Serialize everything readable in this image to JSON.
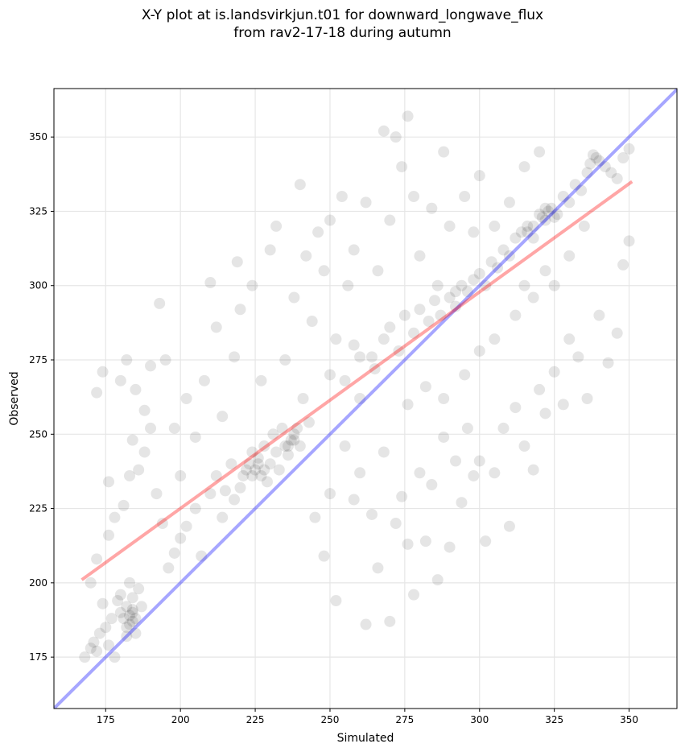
{
  "chart_data": {
    "type": "scatter",
    "title_line1": "X-Y plot at is.landsvirkjun.t01 for downward_longwave_flux",
    "title_line2": "from rav2-17-18 during autumn",
    "xlabel": "Simulated",
    "ylabel": "Observed",
    "xlim": [
      157.7,
      366
    ],
    "ylim": [
      157.7,
      366.3
    ],
    "xticks": [
      175,
      200,
      225,
      250,
      275,
      300,
      325,
      350
    ],
    "yticks": [
      175,
      200,
      225,
      250,
      275,
      300,
      325,
      350
    ],
    "grid": true,
    "colors": {
      "points": "#000000",
      "regression": "#ff0000",
      "identity": "#0000ff"
    },
    "regression_line": {
      "x": [
        167,
        351
      ],
      "y": [
        201,
        335
      ]
    },
    "identity_line": {
      "x": [
        157.7,
        366
      ],
      "y": [
        157.7,
        366
      ]
    },
    "points": [
      [
        168,
        175
      ],
      [
        170,
        178
      ],
      [
        171,
        180
      ],
      [
        172,
        177
      ],
      [
        173,
        183
      ],
      [
        175,
        185
      ],
      [
        176,
        179
      ],
      [
        178,
        175
      ],
      [
        180,
        190
      ],
      [
        181,
        188
      ],
      [
        182,
        192
      ],
      [
        183,
        186
      ],
      [
        184,
        190
      ],
      [
        185,
        188
      ],
      [
        184,
        195
      ],
      [
        186,
        198
      ],
      [
        182,
        182
      ],
      [
        183,
        200
      ],
      [
        180,
        196
      ],
      [
        179,
        194
      ],
      [
        185,
        183
      ],
      [
        187,
        192
      ],
      [
        177,
        188
      ],
      [
        174,
        193
      ],
      [
        170,
        200
      ],
      [
        172,
        208
      ],
      [
        176,
        216
      ],
      [
        178,
        222
      ],
      [
        181,
        226
      ],
      [
        183,
        236
      ],
      [
        184,
        248
      ],
      [
        186,
        238
      ],
      [
        188,
        244
      ],
      [
        190,
        252
      ],
      [
        192,
        230
      ],
      [
        194,
        220
      ],
      [
        196,
        205
      ],
      [
        198,
        210
      ],
      [
        200,
        215
      ],
      [
        202,
        219
      ],
      [
        205,
        225
      ],
      [
        207,
        209
      ],
      [
        210,
        230
      ],
      [
        212,
        236
      ],
      [
        214,
        222
      ],
      [
        215,
        231
      ],
      [
        217,
        240
      ],
      [
        218,
        228
      ],
      [
        220,
        232
      ],
      [
        221,
        236
      ],
      [
        222,
        238
      ],
      [
        223,
        240
      ],
      [
        224,
        244
      ],
      [
        225,
        238
      ],
      [
        226,
        242
      ],
      [
        227,
        236
      ],
      [
        228,
        246
      ],
      [
        229,
        234
      ],
      [
        230,
        240
      ],
      [
        231,
        250
      ],
      [
        232,
        244
      ],
      [
        233,
        238
      ],
      [
        234,
        252
      ],
      [
        235,
        246
      ],
      [
        236,
        243
      ],
      [
        237,
        248
      ],
      [
        238,
        250
      ],
      [
        239,
        252
      ],
      [
        240,
        246
      ],
      [
        241,
        262
      ],
      [
        243,
        254
      ],
      [
        172,
        264
      ],
      [
        174,
        271
      ],
      [
        176,
        234
      ],
      [
        180,
        268
      ],
      [
        182,
        275
      ],
      [
        185,
        265
      ],
      [
        188,
        258
      ],
      [
        190,
        273
      ],
      [
        193,
        294
      ],
      [
        195,
        275
      ],
      [
        198,
        252
      ],
      [
        200,
        236
      ],
      [
        202,
        262
      ],
      [
        205,
        249
      ],
      [
        208,
        268
      ],
      [
        210,
        301
      ],
      [
        212,
        286
      ],
      [
        214,
        256
      ],
      [
        218,
        276
      ],
      [
        219,
        308
      ],
      [
        220,
        292
      ],
      [
        224,
        300
      ],
      [
        227,
        268
      ],
      [
        230,
        312
      ],
      [
        232,
        320
      ],
      [
        235,
        275
      ],
      [
        238,
        296
      ],
      [
        240,
        334
      ],
      [
        242,
        310
      ],
      [
        244,
        288
      ],
      [
        246,
        318
      ],
      [
        248,
        305
      ],
      [
        250,
        322
      ],
      [
        252,
        282
      ],
      [
        254,
        330
      ],
      [
        256,
        300
      ],
      [
        258,
        312
      ],
      [
        260,
        262
      ],
      [
        262,
        328
      ],
      [
        264,
        276
      ],
      [
        266,
        305
      ],
      [
        268,
        352
      ],
      [
        270,
        322
      ],
      [
        272,
        350
      ],
      [
        274,
        340
      ],
      [
        276,
        357
      ],
      [
        278,
        330
      ],
      [
        280,
        310
      ],
      [
        284,
        326
      ],
      [
        286,
        300
      ],
      [
        288,
        345
      ],
      [
        290,
        320
      ],
      [
        292,
        298
      ],
      [
        295,
        330
      ],
      [
        298,
        318
      ],
      [
        300,
        337
      ],
      [
        305,
        320
      ],
      [
        310,
        328
      ],
      [
        315,
        340
      ],
      [
        320,
        345
      ],
      [
        245,
        222
      ],
      [
        248,
        209
      ],
      [
        250,
        230
      ],
      [
        252,
        194
      ],
      [
        255,
        246
      ],
      [
        258,
        228
      ],
      [
        260,
        237
      ],
      [
        262,
        186
      ],
      [
        264,
        223
      ],
      [
        266,
        205
      ],
      [
        268,
        244
      ],
      [
        270,
        187
      ],
      [
        272,
        220
      ],
      [
        274,
        229
      ],
      [
        276,
        213
      ],
      [
        278,
        196
      ],
      [
        280,
        237
      ],
      [
        282,
        214
      ],
      [
        284,
        233
      ],
      [
        286,
        201
      ],
      [
        288,
        249
      ],
      [
        290,
        212
      ],
      [
        292,
        241
      ],
      [
        294,
        227
      ],
      [
        296,
        252
      ],
      [
        298,
        236
      ],
      [
        300,
        241
      ],
      [
        302,
        214
      ],
      [
        305,
        237
      ],
      [
        308,
        252
      ],
      [
        310,
        219
      ],
      [
        312,
        259
      ],
      [
        315,
        246
      ],
      [
        318,
        238
      ],
      [
        320,
        265
      ],
      [
        322,
        257
      ],
      [
        325,
        271
      ],
      [
        328,
        260
      ],
      [
        330,
        282
      ],
      [
        333,
        276
      ],
      [
        336,
        262
      ],
      [
        340,
        290
      ],
      [
        343,
        274
      ],
      [
        346,
        284
      ],
      [
        348,
        307
      ],
      [
        350,
        315
      ],
      [
        250,
        270
      ],
      [
        255,
        268
      ],
      [
        258,
        280
      ],
      [
        260,
        276
      ],
      [
        265,
        272
      ],
      [
        268,
        282
      ],
      [
        270,
        286
      ],
      [
        273,
        278
      ],
      [
        275,
        290
      ],
      [
        278,
        284
      ],
      [
        280,
        292
      ],
      [
        283,
        288
      ],
      [
        285,
        295
      ],
      [
        287,
        290
      ],
      [
        290,
        296
      ],
      [
        292,
        293
      ],
      [
        294,
        300
      ],
      [
        296,
        298
      ],
      [
        298,
        302
      ],
      [
        300,
        304
      ],
      [
        302,
        300
      ],
      [
        304,
        308
      ],
      [
        306,
        306
      ],
      [
        308,
        312
      ],
      [
        310,
        310
      ],
      [
        312,
        316
      ],
      [
        314,
        318
      ],
      [
        316,
        320
      ],
      [
        318,
        316
      ],
      [
        320,
        324
      ],
      [
        322,
        322
      ],
      [
        324,
        326
      ],
      [
        326,
        324
      ],
      [
        328,
        330
      ],
      [
        330,
        328
      ],
      [
        332,
        334
      ],
      [
        334,
        332
      ],
      [
        336,
        338
      ],
      [
        338,
        344
      ],
      [
        340,
        342
      ],
      [
        342,
        340
      ],
      [
        344,
        338
      ],
      [
        346,
        336
      ],
      [
        348,
        343
      ],
      [
        350,
        346
      ],
      [
        325,
        300
      ],
      [
        318,
        296
      ],
      [
        312,
        290
      ],
      [
        305,
        282
      ],
      [
        300,
        278
      ],
      [
        295,
        270
      ],
      [
        288,
        262
      ],
      [
        282,
        266
      ],
      [
        276,
        260
      ],
      [
        335,
        320
      ],
      [
        330,
        310
      ],
      [
        322,
        305
      ],
      [
        315,
        300
      ],
      [
        183,
        189
      ],
      [
        184,
        187
      ],
      [
        182,
        185
      ],
      [
        184,
        191
      ],
      [
        321,
        323
      ],
      [
        323,
        325
      ],
      [
        325,
        323
      ],
      [
        322,
        326
      ],
      [
        316,
        318
      ],
      [
        318,
        320
      ],
      [
        339,
        343
      ],
      [
        337,
        341
      ],
      [
        226,
        240
      ],
      [
        224,
        236
      ],
      [
        228,
        238
      ],
      [
        236,
        246
      ],
      [
        238,
        248
      ]
    ]
  }
}
